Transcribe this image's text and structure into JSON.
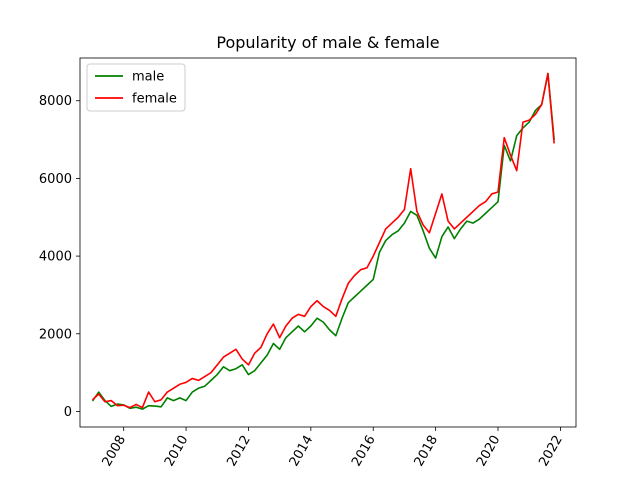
{
  "chart_data": {
    "type": "line",
    "title": "Popularity of male & female",
    "xlabel": "",
    "ylabel": "",
    "xlim": [
      2006.6,
      2022.5
    ],
    "ylim": [
      -400,
      9100
    ],
    "x_ticks": [
      2008,
      2010,
      2012,
      2014,
      2016,
      2018,
      2020,
      2022
    ],
    "y_ticks": [
      0,
      2000,
      4000,
      6000,
      8000
    ],
    "legend": "top-left",
    "grid": false,
    "series": [
      {
        "name": "male",
        "color": "#008000",
        "points": [
          [
            2007.0,
            270
          ],
          [
            2007.2,
            500
          ],
          [
            2007.4,
            280
          ],
          [
            2007.6,
            130
          ],
          [
            2007.8,
            190
          ],
          [
            2008.0,
            170
          ],
          [
            2008.2,
            80
          ],
          [
            2008.4,
            110
          ],
          [
            2008.6,
            60
          ],
          [
            2008.8,
            150
          ],
          [
            2009.0,
            140
          ],
          [
            2009.2,
            120
          ],
          [
            2009.4,
            350
          ],
          [
            2009.6,
            280
          ],
          [
            2009.8,
            350
          ],
          [
            2010.0,
            280
          ],
          [
            2010.2,
            500
          ],
          [
            2010.4,
            600
          ],
          [
            2010.6,
            650
          ],
          [
            2010.8,
            800
          ],
          [
            2011.0,
            950
          ],
          [
            2011.2,
            1150
          ],
          [
            2011.4,
            1050
          ],
          [
            2011.6,
            1100
          ],
          [
            2011.8,
            1200
          ],
          [
            2012.0,
            950
          ],
          [
            2012.2,
            1050
          ],
          [
            2012.4,
            1250
          ],
          [
            2012.6,
            1450
          ],
          [
            2012.8,
            1750
          ],
          [
            2013.0,
            1600
          ],
          [
            2013.2,
            1900
          ],
          [
            2013.4,
            2050
          ],
          [
            2013.6,
            2200
          ],
          [
            2013.8,
            2050
          ],
          [
            2014.0,
            2200
          ],
          [
            2014.2,
            2400
          ],
          [
            2014.4,
            2300
          ],
          [
            2014.6,
            2100
          ],
          [
            2014.8,
            1950
          ],
          [
            2015.0,
            2400
          ],
          [
            2015.2,
            2800
          ],
          [
            2015.4,
            2950
          ],
          [
            2015.6,
            3100
          ],
          [
            2015.8,
            3250
          ],
          [
            2016.0,
            3400
          ],
          [
            2016.2,
            4100
          ],
          [
            2016.4,
            4400
          ],
          [
            2016.6,
            4550
          ],
          [
            2016.8,
            4650
          ],
          [
            2017.0,
            4850
          ],
          [
            2017.2,
            5150
          ],
          [
            2017.4,
            5050
          ],
          [
            2017.6,
            4650
          ],
          [
            2017.8,
            4200
          ],
          [
            2018.0,
            3950
          ],
          [
            2018.2,
            4500
          ],
          [
            2018.4,
            4750
          ],
          [
            2018.6,
            4450
          ],
          [
            2018.8,
            4700
          ],
          [
            2019.0,
            4900
          ],
          [
            2019.2,
            4850
          ],
          [
            2019.4,
            4950
          ],
          [
            2019.6,
            5100
          ],
          [
            2019.8,
            5250
          ],
          [
            2020.0,
            5400
          ],
          [
            2020.2,
            6850
          ],
          [
            2020.4,
            6450
          ],
          [
            2020.6,
            7100
          ],
          [
            2020.8,
            7300
          ],
          [
            2021.0,
            7450
          ],
          [
            2021.2,
            7750
          ],
          [
            2021.4,
            7900
          ],
          [
            2021.6,
            8700
          ],
          [
            2021.8,
            7000
          ]
        ]
      },
      {
        "name": "female",
        "color": "#ff0000",
        "points": [
          [
            2007.0,
            300
          ],
          [
            2007.2,
            450
          ],
          [
            2007.4,
            250
          ],
          [
            2007.6,
            280
          ],
          [
            2007.8,
            150
          ],
          [
            2008.0,
            160
          ],
          [
            2008.2,
            100
          ],
          [
            2008.4,
            180
          ],
          [
            2008.6,
            100
          ],
          [
            2008.8,
            500
          ],
          [
            2009.0,
            250
          ],
          [
            2009.2,
            300
          ],
          [
            2009.4,
            500
          ],
          [
            2009.6,
            600
          ],
          [
            2009.8,
            700
          ],
          [
            2010.0,
            750
          ],
          [
            2010.2,
            850
          ],
          [
            2010.4,
            800
          ],
          [
            2010.6,
            900
          ],
          [
            2010.8,
            1000
          ],
          [
            2011.0,
            1200
          ],
          [
            2011.2,
            1400
          ],
          [
            2011.4,
            1500
          ],
          [
            2011.6,
            1600
          ],
          [
            2011.8,
            1350
          ],
          [
            2012.0,
            1200
          ],
          [
            2012.2,
            1500
          ],
          [
            2012.4,
            1650
          ],
          [
            2012.6,
            2000
          ],
          [
            2012.8,
            2250
          ],
          [
            2013.0,
            1900
          ],
          [
            2013.2,
            2200
          ],
          [
            2013.4,
            2400
          ],
          [
            2013.6,
            2500
          ],
          [
            2013.8,
            2450
          ],
          [
            2014.0,
            2700
          ],
          [
            2014.2,
            2850
          ],
          [
            2014.4,
            2700
          ],
          [
            2014.6,
            2600
          ],
          [
            2014.8,
            2450
          ],
          [
            2015.0,
            2900
          ],
          [
            2015.2,
            3300
          ],
          [
            2015.4,
            3500
          ],
          [
            2015.6,
            3650
          ],
          [
            2015.8,
            3700
          ],
          [
            2016.0,
            4000
          ],
          [
            2016.2,
            4350
          ],
          [
            2016.4,
            4700
          ],
          [
            2016.6,
            4850
          ],
          [
            2016.8,
            5000
          ],
          [
            2017.0,
            5200
          ],
          [
            2017.2,
            6250
          ],
          [
            2017.4,
            5150
          ],
          [
            2017.6,
            4800
          ],
          [
            2017.8,
            4600
          ],
          [
            2018.0,
            5100
          ],
          [
            2018.2,
            5600
          ],
          [
            2018.4,
            4900
          ],
          [
            2018.6,
            4700
          ],
          [
            2018.8,
            4850
          ],
          [
            2019.0,
            5000
          ],
          [
            2019.2,
            5150
          ],
          [
            2019.4,
            5300
          ],
          [
            2019.6,
            5400
          ],
          [
            2019.8,
            5600
          ],
          [
            2020.0,
            5650
          ],
          [
            2020.2,
            7050
          ],
          [
            2020.4,
            6600
          ],
          [
            2020.6,
            6200
          ],
          [
            2020.8,
            7450
          ],
          [
            2021.0,
            7500
          ],
          [
            2021.2,
            7650
          ],
          [
            2021.4,
            7900
          ],
          [
            2021.6,
            8700
          ],
          [
            2021.8,
            6900
          ]
        ]
      }
    ]
  }
}
